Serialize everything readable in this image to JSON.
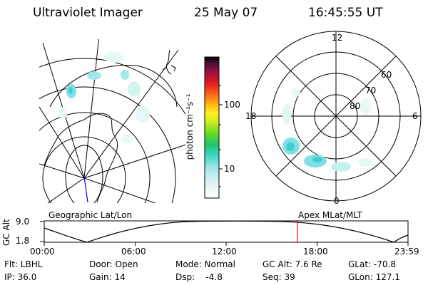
{
  "header": {
    "title": "Ultraviolet Imager",
    "date": "25 May 07",
    "time": "16:45:55 UT"
  },
  "colorbar": {
    "unit_label": "photon cm⁻²s⁻¹",
    "ticks": [
      "100",
      "10"
    ]
  },
  "polar_plot": {
    "mlt_labels": [
      "12",
      "18",
      "6",
      "0"
    ],
    "lat_labels": [
      "60",
      "70",
      "80"
    ]
  },
  "panel_labels": {
    "left": "Geographic Lat/Lon",
    "right": "Apex MLat/MLT"
  },
  "timeline": {
    "ylabel": "GC Alt",
    "yticks": [
      "9.0",
      "1.8"
    ],
    "xticks": [
      "00:00",
      "06:00",
      "12:00",
      "18:00",
      "23:59"
    ],
    "current_time_marker": "16:45:55"
  },
  "footer": {
    "row1": [
      "Flt: LBHL",
      "Door: Open",
      "Mode: Normal",
      "GC Alt: 7.6 Re",
      "GLat: -70.8"
    ],
    "row2": [
      "IP: 36.0",
      "Gain: 14",
      "Dsp:    -4.8",
      "Seq: 39",
      "GLon: 127.1"
    ]
  },
  "colors": {
    "foreground": "#000000",
    "marker": "#ff0000",
    "nadir_line": "#0000ff",
    "aurora_light": "#bfeff0",
    "aurora_mid": "#7fdfe5",
    "aurora_strong": "#3fcfd0"
  }
}
